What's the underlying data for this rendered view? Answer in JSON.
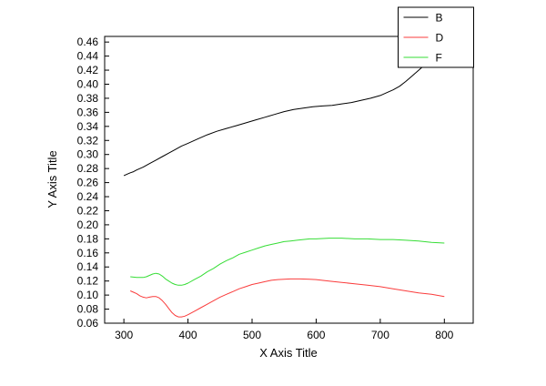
{
  "chart_data": {
    "type": "line",
    "title": "",
    "xlabel": "X Axis Title",
    "ylabel": "Y Axis Title",
    "xlim": [
      270,
      845
    ],
    "ylim": [
      0.06,
      0.468
    ],
    "x_ticks": [
      300,
      400,
      500,
      600,
      700,
      800
    ],
    "y_ticks": [
      0.06,
      0.08,
      0.1,
      0.12,
      0.14,
      0.16,
      0.18,
      0.2,
      0.22,
      0.24,
      0.26,
      0.28,
      0.3,
      0.32,
      0.34,
      0.36,
      0.38,
      0.4,
      0.42,
      0.44,
      0.46
    ],
    "grid": false,
    "legend_position": "top-right",
    "axis_color": "#000000",
    "background_color": "#ffffff",
    "series": [
      {
        "name": "B",
        "color": "#000000",
        "points": [
          [
            300,
            0.27
          ],
          [
            305,
            0.272
          ],
          [
            310,
            0.274
          ],
          [
            315,
            0.2755
          ],
          [
            320,
            0.278
          ],
          [
            330,
            0.282
          ],
          [
            340,
            0.287
          ],
          [
            350,
            0.292
          ],
          [
            360,
            0.297
          ],
          [
            370,
            0.302
          ],
          [
            380,
            0.307
          ],
          [
            390,
            0.312
          ],
          [
            400,
            0.316
          ],
          [
            415,
            0.322
          ],
          [
            430,
            0.328
          ],
          [
            445,
            0.333
          ],
          [
            460,
            0.337
          ],
          [
            475,
            0.341
          ],
          [
            490,
            0.345
          ],
          [
            505,
            0.349
          ],
          [
            520,
            0.353
          ],
          [
            535,
            0.357
          ],
          [
            550,
            0.361
          ],
          [
            565,
            0.364
          ],
          [
            580,
            0.366
          ],
          [
            595,
            0.368
          ],
          [
            610,
            0.369
          ],
          [
            625,
            0.37
          ],
          [
            640,
            0.372
          ],
          [
            655,
            0.374
          ],
          [
            670,
            0.377
          ],
          [
            685,
            0.38
          ],
          [
            700,
            0.384
          ],
          [
            710,
            0.388
          ],
          [
            720,
            0.392
          ],
          [
            730,
            0.397
          ],
          [
            740,
            0.404
          ],
          [
            750,
            0.412
          ],
          [
            760,
            0.42
          ],
          [
            770,
            0.428
          ],
          [
            775,
            0.432
          ],
          [
            780,
            0.435
          ],
          [
            790,
            0.44
          ],
          [
            800,
            0.444
          ]
        ]
      },
      {
        "name": "D",
        "color": "#fa3c3c",
        "points": [
          [
            310,
            0.106
          ],
          [
            315,
            0.104
          ],
          [
            320,
            0.102
          ],
          [
            325,
            0.099
          ],
          [
            330,
            0.097
          ],
          [
            335,
            0.096
          ],
          [
            340,
            0.097
          ],
          [
            345,
            0.098
          ],
          [
            350,
            0.098
          ],
          [
            355,
            0.096
          ],
          [
            360,
            0.092
          ],
          [
            365,
            0.087
          ],
          [
            370,
            0.081
          ],
          [
            375,
            0.075
          ],
          [
            380,
            0.071
          ],
          [
            385,
            0.069
          ],
          [
            390,
            0.069
          ],
          [
            395,
            0.07
          ],
          [
            400,
            0.072
          ],
          [
            410,
            0.077
          ],
          [
            420,
            0.082
          ],
          [
            430,
            0.087
          ],
          [
            440,
            0.092
          ],
          [
            450,
            0.097
          ],
          [
            460,
            0.101
          ],
          [
            470,
            0.105
          ],
          [
            480,
            0.109
          ],
          [
            490,
            0.112
          ],
          [
            500,
            0.115
          ],
          [
            510,
            0.117
          ],
          [
            520,
            0.119
          ],
          [
            530,
            0.121
          ],
          [
            540,
            0.122
          ],
          [
            550,
            0.1225
          ],
          [
            560,
            0.123
          ],
          [
            575,
            0.123
          ],
          [
            590,
            0.1225
          ],
          [
            600,
            0.122
          ],
          [
            620,
            0.12
          ],
          [
            640,
            0.118
          ],
          [
            660,
            0.116
          ],
          [
            680,
            0.114
          ],
          [
            700,
            0.112
          ],
          [
            720,
            0.109
          ],
          [
            740,
            0.106
          ],
          [
            760,
            0.103
          ],
          [
            780,
            0.101
          ],
          [
            800,
            0.098
          ]
        ]
      },
      {
        "name": "F",
        "color": "#35dd35",
        "points": [
          [
            310,
            0.126
          ],
          [
            320,
            0.125
          ],
          [
            330,
            0.125
          ],
          [
            335,
            0.126
          ],
          [
            340,
            0.128
          ],
          [
            345,
            0.13
          ],
          [
            350,
            0.131
          ],
          [
            355,
            0.13
          ],
          [
            360,
            0.127
          ],
          [
            365,
            0.123
          ],
          [
            370,
            0.12
          ],
          [
            375,
            0.117
          ],
          [
            380,
            0.115
          ],
          [
            385,
            0.114
          ],
          [
            390,
            0.114
          ],
          [
            395,
            0.115
          ],
          [
            400,
            0.117
          ],
          [
            410,
            0.122
          ],
          [
            420,
            0.127
          ],
          [
            430,
            0.133
          ],
          [
            440,
            0.138
          ],
          [
            450,
            0.144
          ],
          [
            460,
            0.149
          ],
          [
            470,
            0.153
          ],
          [
            480,
            0.158
          ],
          [
            490,
            0.161
          ],
          [
            500,
            0.164
          ],
          [
            510,
            0.167
          ],
          [
            520,
            0.17
          ],
          [
            530,
            0.172
          ],
          [
            540,
            0.174
          ],
          [
            550,
            0.176
          ],
          [
            560,
            0.177
          ],
          [
            570,
            0.178
          ],
          [
            580,
            0.179
          ],
          [
            590,
            0.18
          ],
          [
            600,
            0.18
          ],
          [
            620,
            0.181
          ],
          [
            640,
            0.181
          ],
          [
            660,
            0.18
          ],
          [
            680,
            0.18
          ],
          [
            700,
            0.179
          ],
          [
            720,
            0.179
          ],
          [
            740,
            0.178
          ],
          [
            760,
            0.177
          ],
          [
            780,
            0.175
          ],
          [
            800,
            0.174
          ]
        ]
      }
    ]
  }
}
